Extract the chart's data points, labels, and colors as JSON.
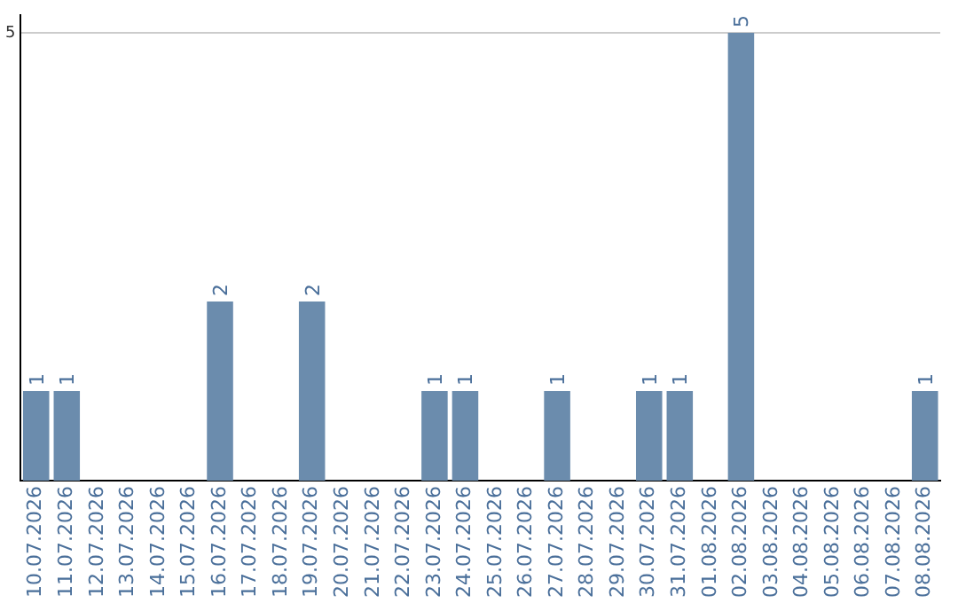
{
  "chart_data": {
    "type": "bar",
    "categories": [
      "10.07.2026",
      "11.07.2026",
      "12.07.2026",
      "13.07.2026",
      "14.07.2026",
      "15.07.2026",
      "16.07.2026",
      "17.07.2026",
      "18.07.2026",
      "19.07.2026",
      "20.07.2026",
      "21.07.2026",
      "22.07.2026",
      "23.07.2026",
      "24.07.2026",
      "25.07.2026",
      "26.07.2026",
      "27.07.2026",
      "28.07.2026",
      "29.07.2026",
      "30.07.2026",
      "31.07.2026",
      "01.08.2026",
      "02.08.2026",
      "03.08.2026",
      "04.08.2026",
      "05.08.2026",
      "06.08.2026",
      "07.08.2026",
      "08.08.2026"
    ],
    "values": [
      1,
      1,
      0,
      0,
      0,
      0,
      2,
      0,
      0,
      2,
      0,
      0,
      0,
      1,
      1,
      0,
      0,
      1,
      0,
      0,
      1,
      1,
      0,
      5,
      0,
      0,
      0,
      0,
      0,
      1
    ],
    "value_labels": [
      "1",
      "1",
      null,
      null,
      null,
      null,
      "2",
      null,
      null,
      "2",
      null,
      null,
      null,
      "1",
      "1",
      null,
      null,
      "1",
      null,
      null,
      "1",
      "1",
      null,
      "5",
      null,
      null,
      null,
      null,
      null,
      "1"
    ],
    "color": "#6b8cad",
    "ylim": [
      0,
      5.2
    ],
    "yticks": [
      5
    ],
    "grid": "y"
  }
}
